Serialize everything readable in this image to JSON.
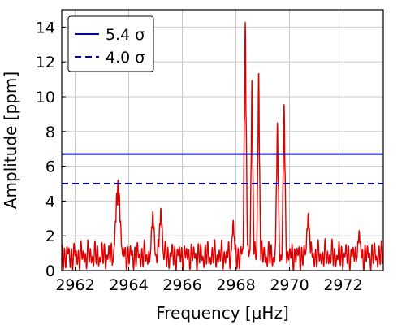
{
  "chart_data": {
    "type": "line",
    "xlabel": "Frequency [μHz]",
    "ylabel": "Amplitude [ppm]",
    "xlim": [
      2961.5,
      2973.5
    ],
    "ylim": [
      0,
      15
    ],
    "xticks": [
      "2962",
      "2964",
      "2966",
      "2968",
      "2970",
      "2972"
    ],
    "yticks": [
      "0",
      "2",
      "4",
      "6",
      "8",
      "10",
      "12",
      "14"
    ],
    "grid": true,
    "legend_position": "top-left",
    "thresholds": [
      {
        "name": "5.4 σ",
        "value": 6.7,
        "style": "solid",
        "color": "#0000cc"
      },
      {
        "name": "4.0 σ",
        "value": 5.0,
        "style": "dashed",
        "color": "#0000cc"
      }
    ],
    "series": [
      {
        "color": "#dd0000",
        "peaks": [
          {
            "x": 2963.6,
            "y": 5.2,
            "w": 0.09
          },
          {
            "x": 2964.9,
            "y": 3.4,
            "w": 0.06
          },
          {
            "x": 2965.2,
            "y": 3.6,
            "w": 0.06
          },
          {
            "x": 2967.9,
            "y": 2.9,
            "w": 0.05
          },
          {
            "x": 2968.35,
            "y": 14.3,
            "w": 0.04
          },
          {
            "x": 2968.6,
            "y": 11.0,
            "w": 0.035
          },
          {
            "x": 2968.85,
            "y": 11.5,
            "w": 0.035
          },
          {
            "x": 2969.55,
            "y": 8.5,
            "w": 0.04
          },
          {
            "x": 2969.8,
            "y": 9.6,
            "w": 0.04
          },
          {
            "x": 2970.7,
            "y": 3.3,
            "w": 0.06
          },
          {
            "x": 2972.6,
            "y": 2.3,
            "w": 0.06
          }
        ]
      }
    ]
  }
}
